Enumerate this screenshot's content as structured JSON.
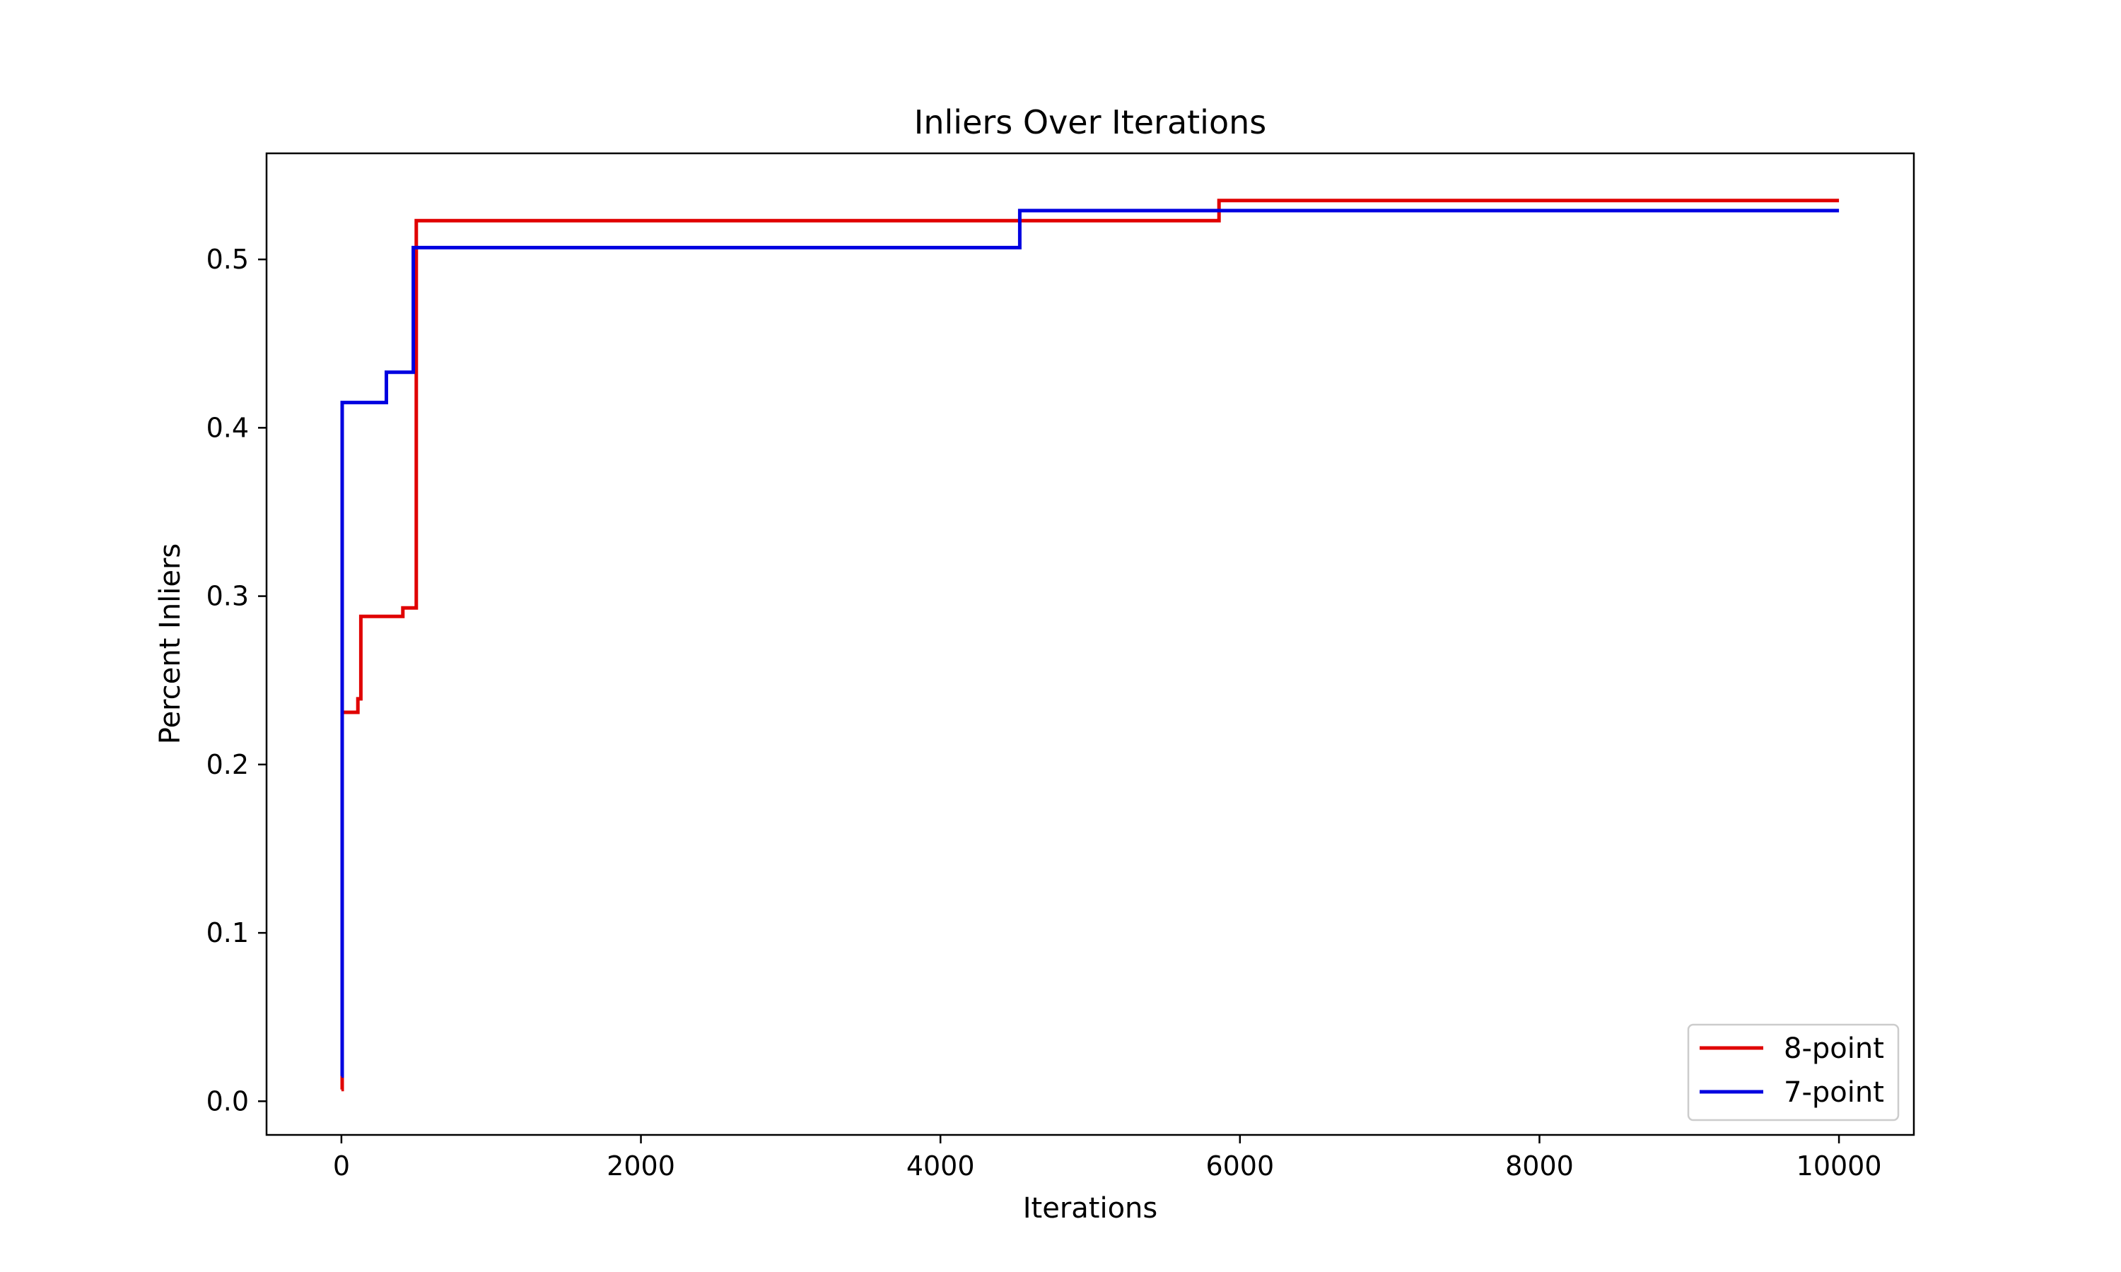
{
  "chart_data": {
    "type": "line",
    "title": "Inliers Over Iterations",
    "xlabel": "Iterations",
    "ylabel": "Percent Inliers",
    "xlim": [
      -500,
      10500
    ],
    "ylim": [
      -0.02,
      0.563
    ],
    "xticks": [
      0,
      2000,
      4000,
      6000,
      8000,
      10000
    ],
    "xtick_labels": [
      "0",
      "2000",
      "4000",
      "6000",
      "8000",
      "10000"
    ],
    "yticks": [
      0.0,
      0.1,
      0.2,
      0.3,
      0.4,
      0.5
    ],
    "ytick_labels": [
      "0.0",
      "0.1",
      "0.2",
      "0.3",
      "0.4",
      "0.5"
    ],
    "grid": false,
    "legend_position": "lower-right",
    "step": "post",
    "series": [
      {
        "name": "8-point",
        "color": "#e00000",
        "x": [
          0,
          5,
          60,
          110,
          130,
          390,
          410,
          490,
          500,
          5860,
          10000
        ],
        "y": [
          0.007,
          0.231,
          0.231,
          0.239,
          0.288,
          0.288,
          0.293,
          0.293,
          0.523,
          0.535,
          0.535
        ]
      },
      {
        "name": "7-point",
        "color": "#0000e0",
        "x": [
          0,
          5,
          300,
          480,
          4530,
          10000
        ],
        "y": [
          0.015,
          0.415,
          0.433,
          0.507,
          0.529,
          0.529
        ]
      }
    ]
  }
}
